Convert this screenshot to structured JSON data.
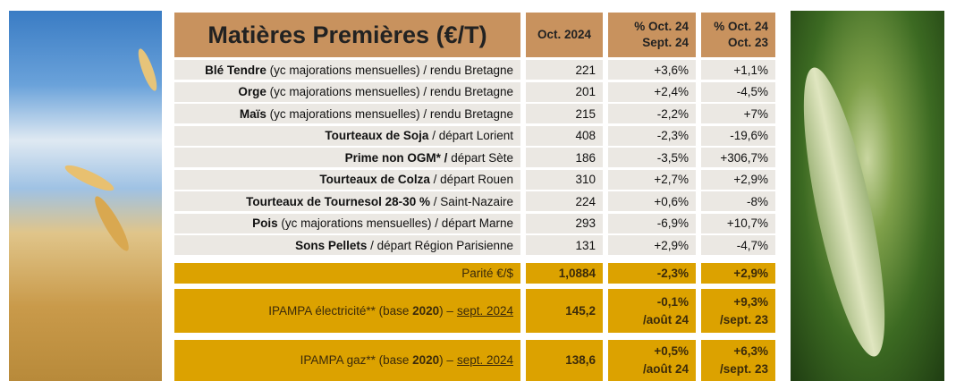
{
  "header": {
    "title": "Matières Premières (€/T)",
    "col1": "Oct. 2024",
    "col2_l1": "% Oct. 24",
    "col2_l2": "Sept. 24",
    "col3_l1": "% Oct. 24",
    "col3_l2": "Oct. 23"
  },
  "rows": [
    {
      "bold": "Blé Tendre",
      "rest": " (yc majorations mensuelles) / rendu Bretagne",
      "value": "221",
      "var_month": "+3,6%",
      "var_year": "+1,1%"
    },
    {
      "bold": "Orge",
      "rest": " (yc majorations mensuelles) / rendu Bretagne",
      "value": "201",
      "var_month": "+2,4%",
      "var_year": "-4,5%"
    },
    {
      "bold": "Maïs",
      "rest": " (yc majorations mensuelles) / rendu Bretagne",
      "value": "215",
      "var_month": "-2,2%",
      "var_year": "+7%"
    },
    {
      "bold": "Tourteaux de Soja",
      "rest": " / départ Lorient",
      "value": "408",
      "var_month": "-2,3%",
      "var_year": "-19,6%"
    },
    {
      "bold": "Prime non OGM* /",
      "rest": " départ Sète",
      "value": "186",
      "var_month": "-3,5%",
      "var_year": "+306,7%"
    },
    {
      "bold": "Tourteaux de Colza",
      "rest": " / départ Rouen",
      "value": "310",
      "var_month": "+2,7%",
      "var_year": "+2,9%"
    },
    {
      "bold": "Tourteaux de Tournesol 28-30 %",
      "rest": " / Saint-Nazaire",
      "value": "224",
      "var_month": "+0,6%",
      "var_year": "-8%"
    },
    {
      "bold": "Pois",
      "rest": " (yc majorations mensuelles) / départ Marne",
      "value": "293",
      "var_month": "-6,9%",
      "var_year": "+10,7%"
    },
    {
      "bold": "Sons Pellets",
      "rest": " / départ Région Parisienne",
      "value": "131",
      "var_month": "+2,9%",
      "var_year": "-4,7%"
    }
  ],
  "parity": {
    "label": "Parité €/$",
    "value": "1,0884",
    "var_month": "-2,3%",
    "var_year": "+2,9%"
  },
  "ipampa": [
    {
      "pre": "IPAMPA électricité** (base ",
      "year": "2020",
      "post": ") –",
      "date": "sept. 2024",
      "value": "145,2",
      "var_month": "-0,1%",
      "month_ref": "/août 24",
      "var_year": "+9,3%",
      "year_ref": "/sept. 23"
    },
    {
      "pre": "IPAMPA gaz** (base ",
      "year": "2020",
      "post": ") –",
      "date": "sept. 2024",
      "value": "138,6",
      "var_month": "+0,5%",
      "month_ref": "/août 24",
      "var_year": "+6,3%",
      "year_ref": "/sept. 23"
    }
  ],
  "colors": {
    "header": "#c8925e",
    "row": "#ebe8e3",
    "gold": "#dca200"
  }
}
